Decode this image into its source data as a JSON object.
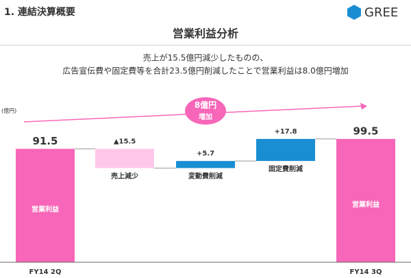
{
  "header": {
    "section": "1. 連結決算概要",
    "logo": "GREE"
  },
  "chart_data": {
    "type": "waterfall",
    "title": "営業利益分析",
    "subtitle": [
      "売上が15.5億円減少したものの、",
      "広告宣伝費や固定費等を合計23.5億円削減したことで営業利益は8.0億円増加"
    ],
    "y_label": "(億円)",
    "annotation": [
      "8億円",
      "増加"
    ],
    "inner_label": "営業利益",
    "categories": [
      "FY14 2Q",
      "売上減少",
      "変動費削減",
      "固定費削減",
      "FY14 3Q"
    ],
    "values": [
      91.5,
      -15.5,
      5.7,
      17.8,
      99.5
    ],
    "value_labels": [
      "91.5",
      "▲15.5",
      "+5.7",
      "+17.8",
      "99.5"
    ],
    "colors": [
      "#f766b8",
      "#ffc8e8",
      "#1a8ed3",
      "#1a8ed3",
      "#f766b8"
    ],
    "ylim": [
      0,
      100
    ]
  }
}
